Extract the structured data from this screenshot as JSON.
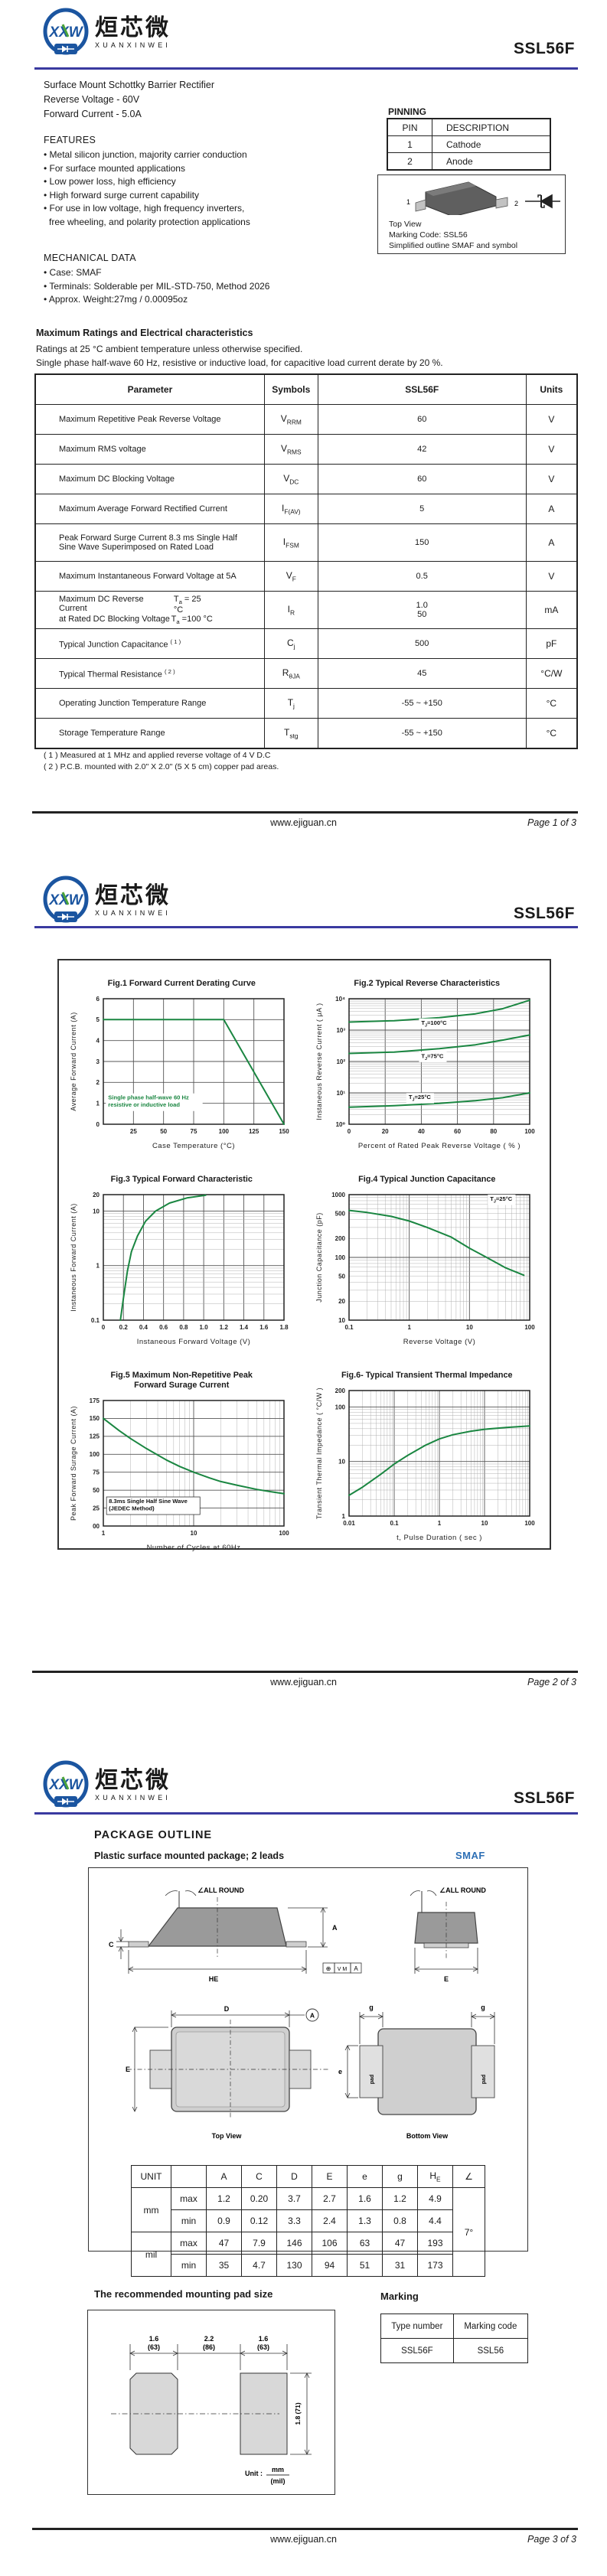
{
  "product": {
    "name": "SSL56F"
  },
  "brand": {
    "abbr": "XXW",
    "cn": "烜芯微",
    "en": "XUANXINWEI"
  },
  "colors": {
    "accent_rule": "#3a3aa0",
    "curve": "#1a8641",
    "smaf_blue": "#2d6fb5"
  },
  "footer": {
    "url": "www.ejiguan.cn",
    "pages": [
      "Page 1 of 3",
      "Page 2 of 3",
      "Page 3 of 3"
    ]
  },
  "page1": {
    "description": [
      "Surface Mount Schottky Barrier Rectifier",
      "Reverse Voltage - 60V",
      "Forward Current - 5.0A"
    ],
    "features": {
      "title": "FEATURES",
      "items": [
        {
          "t": "Metal silicon junction, majority carrier conduction"
        },
        {
          "t": "For surface mounted applications"
        },
        {
          "t": "Low power loss, high efficiency"
        },
        {
          "t": "High forward surge current capability"
        },
        {
          "t": "For use in low voltage, high frequency inverters,"
        },
        {
          "t": "free wheeling, and polarity protection applications",
          "cont": true
        }
      ]
    },
    "mechanical": {
      "title": "MECHANICAL DATA",
      "items": [
        {
          "t": "Case: SMAF"
        },
        {
          "t": "Terminals: Solderable per MIL-STD-750, Method 2026"
        },
        {
          "t": "Approx. Weight:27mg /  0.00095oz"
        }
      ]
    },
    "pinning": {
      "title": "PINNING",
      "headers": [
        "PIN",
        "DESCRIPTION"
      ],
      "rows": [
        [
          "1",
          "Cathode"
        ],
        [
          "2",
          "Anode"
        ]
      ]
    },
    "outline_box": {
      "pin1": "1",
      "pin2": "2",
      "captions": [
        "Top View",
        "Marking Code:  SSL56",
        "Simplified outline SMAF and symbol"
      ]
    },
    "ratings": {
      "title": "Maximum Ratings and Electrical characteristics",
      "note1": "Ratings at 25 °C ambient temperature unless otherwise specified.",
      "note2": "Single phase half-wave 60 Hz, resistive or inductive load, for capacitive load current derate by 20 %.",
      "headers": [
        "Parameter",
        "Symbols",
        "SSL56F",
        "Units"
      ],
      "rows": [
        {
          "p": [
            "Maximum Repetitive Peak Reverse Voltage"
          ],
          "s": "V~RRM~",
          "v": [
            "60"
          ],
          "u": "V"
        },
        {
          "p": [
            "Maximum RMS voltage"
          ],
          "s": "V~RMS~",
          "v": [
            "42"
          ],
          "u": "V"
        },
        {
          "p": [
            "Maximum DC Blocking Voltage"
          ],
          "s": "V~DC~",
          "v": [
            "60"
          ],
          "u": "V"
        },
        {
          "p": [
            "Maximum Average Forward Rectified Current"
          ],
          "s": "I~F(AV)~",
          "v": [
            "5"
          ],
          "u": "A"
        },
        {
          "p": [
            "Peak Forward Surge Current 8.3 ms Single Half",
            "Sine Wave Superimposed on Rated Load"
          ],
          "s": "I~FSM~",
          "v": [
            "150"
          ],
          "u": "A"
        },
        {
          "p": [
            "Maximum Instantaneous Forward Voltage at 5A"
          ],
          "s": "V~F~",
          "v": [
            "0.5"
          ],
          "u": "V"
        },
        {
          "p": [
            "Maximum DC Reverse Current",
            "at Rated DC Blocking Voltage"
          ],
          "c": [
            "T~a~ = 25 °C",
            "T~a~ =100 °C"
          ],
          "s": "I~R~",
          "v": [
            "1.0",
            "50"
          ],
          "u": "mA"
        },
        {
          "p": [
            "Typical Junction Capacitance ^( 1 )^"
          ],
          "s": "C~j~",
          "v": [
            "500"
          ],
          "u": "pF"
        },
        {
          "p": [
            "Typical Thermal Resistance ^( 2 )^"
          ],
          "s": "R~θJA~",
          "v": [
            "45"
          ],
          "u": "°C/W"
        },
        {
          "p": [
            "Operating Junction Temperature Range"
          ],
          "s": "T~j~",
          "v": [
            "-55 ~ +150"
          ],
          "u": "°C"
        },
        {
          "p": [
            "Storage Temperature Range"
          ],
          "s": "T~stg~",
          "v": [
            "-55 ~ +150"
          ],
          "u": "°C"
        }
      ],
      "footnotes": [
        "( 1 ) Measured at 1 MHz and applied reverse voltage of 4 V D.C",
        "( 2 ) P.C.B. mounted with 2.0\" X 2.0\" (5 X 5 cm) copper pad areas."
      ]
    }
  },
  "chart_data": [
    {
      "id": "fig1",
      "type": "line",
      "title": [
        "Fig.1  Forward Current Derating Curve"
      ],
      "xlabel": "Case Temperature (°C)",
      "ylabel": "Average Forward Current (A)",
      "xscale": "linear",
      "yscale": "linear",
      "xlim": [
        0,
        150
      ],
      "ylim": [
        0,
        6
      ],
      "xticks": [
        25,
        50,
        75,
        100,
        125,
        150
      ],
      "xtick_labels": [
        "25",
        "50",
        "75",
        "100",
        "125",
        "150"
      ],
      "yticks": [
        0,
        1,
        2,
        3,
        4,
        5,
        6
      ],
      "ytick_labels": [
        "0",
        "1",
        "2",
        "3",
        "4",
        "5",
        "6"
      ],
      "series": [
        {
          "name": "derating",
          "points": [
            [
              0,
              5
            ],
            [
              100,
              5
            ],
            [
              150,
              0
            ]
          ]
        }
      ],
      "annotations": [
        {
          "x": 4,
          "y": 1.18,
          "lines": [
            "Single phase half-wave 60 Hz",
            "resistive or inductive load"
          ],
          "color": "#1a8641",
          "bg": true
        }
      ]
    },
    {
      "id": "fig2",
      "type": "line",
      "title": [
        "Fig.2  Typical Reverse Characteristics"
      ],
      "xlabel": "Percent of Rated Peak Reverse Voltage ( % )",
      "ylabel": "Instaneous Reverse Current ( μA )",
      "xscale": "linear",
      "yscale": "log",
      "xlim": [
        0,
        100
      ],
      "ylim": [
        1,
        10000
      ],
      "xticks": [
        0,
        20,
        40,
        60,
        80,
        100
      ],
      "xtick_labels": [
        "0",
        "20",
        "40",
        "60",
        "80",
        "100"
      ],
      "yticks": [
        1,
        10,
        100,
        1000,
        10000
      ],
      "ytick_labels": [
        "10⁰",
        "10¹",
        "10²",
        "10³",
        "10⁴"
      ],
      "series": [
        {
          "name": "TJ=100°C",
          "points": [
            [
              0,
              1800
            ],
            [
              25,
              2000
            ],
            [
              50,
              2500
            ],
            [
              70,
              3300
            ],
            [
              85,
              4800
            ],
            [
              100,
              9000
            ]
          ]
        },
        {
          "name": "TJ=75°C",
          "points": [
            [
              0,
              180
            ],
            [
              25,
              200
            ],
            [
              50,
              255
            ],
            [
              70,
              340
            ],
            [
              85,
              480
            ],
            [
              100,
              700
            ]
          ]
        },
        {
          "name": "TJ=25°C",
          "points": [
            [
              0,
              3.5
            ],
            [
              25,
              3.9
            ],
            [
              50,
              4.6
            ],
            [
              70,
              5.6
            ],
            [
              85,
              7
            ],
            [
              100,
              10
            ]
          ]
        }
      ],
      "annotations": [
        {
          "x": 40,
          "y": 1500,
          "lines": [
            "T~J~=100°C"
          ],
          "bg": true
        },
        {
          "x": 40,
          "y": 130,
          "lines": [
            "T~J~=75°C"
          ],
          "bg": true
        },
        {
          "x": 33,
          "y": 6.3,
          "lines": [
            "T~J~=25°C"
          ],
          "bg": true
        }
      ]
    },
    {
      "id": "fig3",
      "type": "line",
      "title": [
        "Fig.3  Typical Forward Characteristic"
      ],
      "xlabel": "Instaneous Forward Voltage (V)",
      "ylabel": "Instaneous Forward Current  (A)",
      "xscale": "linear",
      "yscale": "log",
      "xlim": [
        0,
        1.8
      ],
      "ylim": [
        0.1,
        20
      ],
      "xticks": [
        0,
        0.2,
        0.4,
        0.6,
        0.8,
        1.0,
        1.2,
        1.4,
        1.6,
        1.8
      ],
      "xtick_labels": [
        "0",
        "0.2",
        "0.4",
        "0.6",
        "0.8",
        "1.0",
        "1.2",
        "1.4",
        "1.6",
        "1.8"
      ],
      "yticks": [
        0.1,
        1,
        10,
        20
      ],
      "ytick_labels": [
        "0.1",
        "1",
        "10",
        "20"
      ],
      "series": [
        {
          "name": "VF",
          "points": [
            [
              0.17,
              0.1
            ],
            [
              0.2,
              0.25
            ],
            [
              0.24,
              0.8
            ],
            [
              0.28,
              1.8
            ],
            [
              0.34,
              3.5
            ],
            [
              0.42,
              6.5
            ],
            [
              0.52,
              10
            ],
            [
              0.66,
              14
            ],
            [
              0.84,
              17.5
            ],
            [
              1.02,
              19.5
            ]
          ]
        }
      ]
    },
    {
      "id": "fig4",
      "type": "line",
      "title": [
        "Fig.4  Typical Junction Capacitance"
      ],
      "xlabel": "Reverse  Voltage (V)",
      "ylabel": "Junction Capacitance (pF)",
      "xscale": "log",
      "yscale": "log",
      "xlim": [
        0.1,
        100
      ],
      "ylim": [
        10,
        1000
      ],
      "xticks": [
        0.1,
        1,
        10,
        100
      ],
      "xtick_labels": [
        "0.1",
        "1",
        "10",
        "100"
      ],
      "yticks": [
        10,
        20,
        50,
        100,
        200,
        500,
        1000
      ],
      "ytick_labels": [
        "10",
        "20",
        "50",
        "100",
        "200",
        "500",
        "1000"
      ],
      "series": [
        {
          "name": "Cj",
          "points": [
            [
              0.1,
              560
            ],
            [
              0.2,
              520
            ],
            [
              0.5,
              450
            ],
            [
              1,
              380
            ],
            [
              2,
              300
            ],
            [
              5,
              210
            ],
            [
              10,
              140
            ],
            [
              20,
              98
            ],
            [
              40,
              68
            ],
            [
              80,
              52
            ]
          ]
        }
      ],
      "annotations": [
        {
          "x": 22,
          "y": 800,
          "lines": [
            "T~J~=25°C"
          ],
          "bg": true
        }
      ]
    },
    {
      "id": "fig5",
      "type": "line",
      "title": [
        "Fig.5  Maximum Non-Repetitive Peak",
        "Forward Surage Current"
      ],
      "xlabel": "Number of Cycles at 60Hz",
      "ylabel": "Peak Forward Surage Current (A)",
      "xscale": "log",
      "yscale": "linear",
      "xlim": [
        1,
        100
      ],
      "ylim": [
        0,
        175
      ],
      "xticks": [
        1,
        10,
        100
      ],
      "xtick_labels": [
        "1",
        "10",
        "100"
      ],
      "yticks": [
        0,
        25,
        50,
        75,
        100,
        125,
        150,
        175
      ],
      "ytick_labels": [
        "00",
        "25",
        "50",
        "75",
        "100",
        "125",
        "150",
        "175"
      ],
      "series": [
        {
          "name": "IFSM",
          "points": [
            [
              1,
              150
            ],
            [
              1.5,
              133
            ],
            [
              2,
              122
            ],
            [
              3,
              108
            ],
            [
              5,
              92
            ],
            [
              7,
              83
            ],
            [
              10,
              75
            ],
            [
              15,
              67
            ],
            [
              20,
              62
            ],
            [
              30,
              57
            ],
            [
              50,
              51
            ],
            [
              70,
              48
            ],
            [
              100,
              45
            ]
          ]
        }
      ],
      "annotations": [
        {
          "x": 1.15,
          "y": 32,
          "lines": [
            "8.3ms Single Half Sine Wave",
            "(JEDEC Method)"
          ],
          "bg": true,
          "border": true
        }
      ]
    },
    {
      "id": "fig6",
      "type": "line",
      "title": [
        "Fig.6- Typical Transient Thermal Impedance"
      ],
      "xlabel": "t, Pulse Duration ( sec )",
      "ylabel": "Transient Thermal Impedance ( °C/W )",
      "xscale": "log",
      "yscale": "log",
      "xlim": [
        0.01,
        100
      ],
      "ylim": [
        1,
        200
      ],
      "xticks": [
        0.01,
        0.1,
        1,
        10,
        100
      ],
      "xtick_labels": [
        "0.01",
        "0.1",
        "1",
        "10",
        "100"
      ],
      "yticks": [
        1,
        10,
        100,
        200
      ],
      "ytick_labels": [
        "1",
        "10",
        "100",
        "200"
      ],
      "series": [
        {
          "name": "Zth",
          "points": [
            [
              0.01,
              2.4
            ],
            [
              0.02,
              3.4
            ],
            [
              0.05,
              5.8
            ],
            [
              0.1,
              9
            ],
            [
              0.2,
              13
            ],
            [
              0.5,
              20
            ],
            [
              1,
              26
            ],
            [
              2,
              31
            ],
            [
              5,
              36
            ],
            [
              10,
              39
            ],
            [
              30,
              42
            ],
            [
              100,
              45
            ]
          ]
        }
      ]
    }
  ],
  "page3": {
    "section_title": "PACKAGE  OUTLINE",
    "subtitle": "Plastic surface mounted package; 2 leads",
    "package_name": "SMAF",
    "drawing_labels": {
      "all_round": "∠ALL ROUND",
      "A": "A",
      "C": "C",
      "HE": "HE",
      "E": "E",
      "D": "D",
      "g": "g",
      "e": "e",
      "pad": "pad",
      "top_view": "Top View",
      "bottom_view": "Bottom View",
      "datum": "A"
    },
    "dim_table": {
      "unit_label": "UNIT",
      "cols": [
        "A",
        "C",
        "D",
        "E",
        "e",
        "g",
        "H~E~",
        "∠"
      ],
      "row_groups": [
        {
          "unit": "mm",
          "rows": [
            {
              "label": "max",
              "values": [
                "1.2",
                "0.20",
                "3.7",
                "2.7",
                "1.6",
                "1.2",
                "4.9"
              ]
            },
            {
              "label": "min",
              "values": [
                "0.9",
                "0.12",
                "3.3",
                "2.4",
                "1.3",
                "0.8",
                "4.4"
              ]
            }
          ]
        },
        {
          "unit": "mil",
          "rows": [
            {
              "label": "max",
              "values": [
                "47",
                "7.9",
                "146",
                "106",
                "63",
                "47",
                "193"
              ]
            },
            {
              "label": "min",
              "values": [
                "35",
                "4.7",
                "130",
                "94",
                "51",
                "31",
                "173"
              ]
            }
          ]
        }
      ],
      "angle": "7°"
    },
    "pad_section": {
      "title": "The recommended mounting pad size",
      "dims_top": [
        [
          "1.6",
          "(63)"
        ],
        [
          "2.2",
          "(86)"
        ],
        [
          "1.6",
          "(63)"
        ]
      ],
      "dim_right": [
        "1.8",
        "(71)"
      ],
      "unit_label": "Unit :",
      "unit_top": "mm",
      "unit_bottom": "(mil)"
    },
    "marking": {
      "title": "Marking",
      "headers": [
        "Type number",
        "Marking code"
      ],
      "rows": [
        [
          "SSL56F",
          "SSL56"
        ]
      ]
    }
  }
}
